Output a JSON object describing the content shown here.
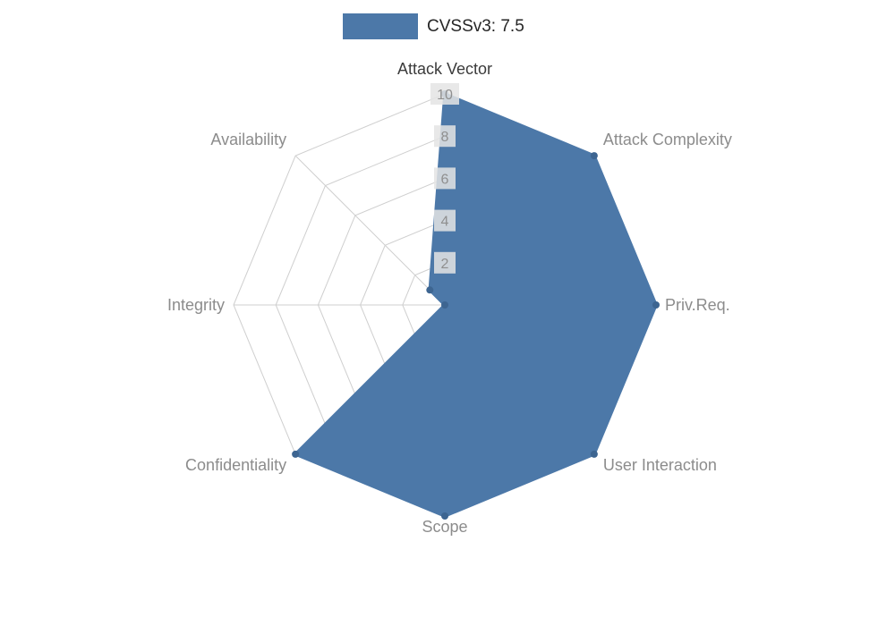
{
  "legend": {
    "label": "CVSSv3: 7.5",
    "swatch_color": "#4c78a8"
  },
  "chart_data": {
    "type": "radar",
    "categories": [
      "Attack Vector",
      "Attack Complexity",
      "Priv.Req.",
      "User Interaction",
      "Scope",
      "Confidentiality",
      "Integrity",
      "Availability"
    ],
    "series": [
      {
        "name": "CVSSv3: 7.5",
        "values": [
          10,
          10,
          10,
          10,
          10,
          10,
          0,
          1
        ]
      }
    ],
    "rmin": 0,
    "rmax": 10,
    "ticks": [
      2,
      4,
      6,
      8,
      10
    ],
    "grid": true,
    "legend_position": "top-center",
    "colors": {
      "series_fill": "#4c78a8",
      "series_line": "#4c78a8",
      "series_marker": "#3d6591",
      "grid": "#cfcfcf",
      "tick_text": "#8f8f8f",
      "tick_bg": "#e4e4e4",
      "axis_label": "#8c8c8c",
      "first_axis_label": "#3b3b3b"
    }
  }
}
